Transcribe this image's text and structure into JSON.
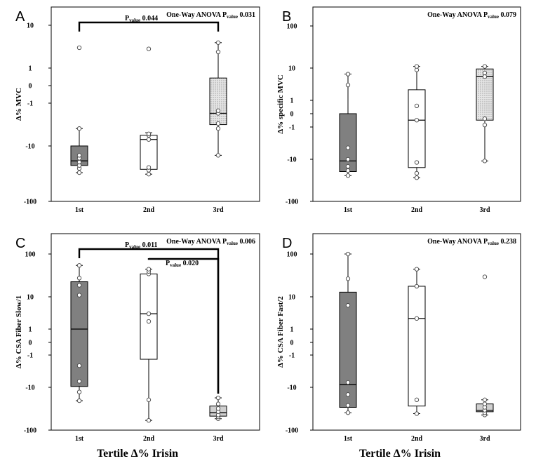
{
  "figure": {
    "xlabel": "Tertile Δ% Irisin",
    "colors": {
      "dark": "#808080",
      "light": "#ffffff",
      "pattern": "#d6d6d6",
      "light_gray": "#d0d0d0"
    }
  },
  "chart_data": [
    {
      "type": "boxplot",
      "panel": "A",
      "ylabel": "Δ% MVC",
      "categories": [
        "1st",
        "2nd",
        "3rd"
      ],
      "yscale": "symlog",
      "ylim": [
        -100,
        10
      ],
      "yticks": [
        -100,
        -10,
        -1,
        0,
        1,
        10
      ],
      "ytick_labels": [
        "-100",
        "-10",
        "-1",
        "0",
        "1",
        "10"
      ],
      "boxes": [
        {
          "category": "1st",
          "fill": "dark",
          "whisker_low": -31,
          "q1": -23,
          "median": -19,
          "q3": -10,
          "whisker_high": -4.5,
          "points": [
            -31,
            -26,
            -23,
            -20,
            -17,
            -15,
            -4.5,
            3.5
          ]
        },
        {
          "category": "2nd",
          "fill": "light",
          "whisker_low": -33,
          "q1": -27,
          "median": -7.5,
          "q3": -6.2,
          "whisker_high": -5.5,
          "points": [
            -33,
            -28,
            -25,
            -7.5,
            -6.2,
            -5.8,
            3.3
          ]
        },
        {
          "category": "3rd",
          "fill": "pattern",
          "whisker_low": -15,
          "q1": -3.7,
          "median": -2.0,
          "q3": 0.35,
          "whisker_high": 4.5,
          "points": [
            -15,
            -4.5,
            -3.5,
            -2.0,
            -1.7,
            2.8,
            4.5
          ]
        }
      ],
      "annotation": {
        "one_way_text": "One-Way ANOVA P",
        "one_way_sub": "value",
        "one_way_val": "0.031",
        "pairs": [
          {
            "from": "1st",
            "to": "3rd",
            "label": "P",
            "sub": "value",
            "val": "0.044"
          }
        ]
      }
    },
    {
      "type": "boxplot",
      "panel": "B",
      "ylabel": "Δ% specific MVC",
      "categories": [
        "1st",
        "2nd",
        "3rd"
      ],
      "yscale": "symlog",
      "ylim": [
        -100,
        100
      ],
      "yticks": [
        -100,
        -10,
        -1,
        0,
        1,
        10,
        100
      ],
      "ytick_labels": [
        "-100",
        "-10",
        "-1",
        "0",
        "1",
        "10",
        "100"
      ],
      "boxes": [
        {
          "category": "1st",
          "fill": "dark",
          "whisker_low": -25,
          "q1": -20,
          "median": -11,
          "q3": 0,
          "whisker_high": 7,
          "points": [
            -25,
            -19,
            -15,
            -10,
            -5,
            3.5,
            7
          ]
        },
        {
          "category": "2nd",
          "fill": "light",
          "whisker_low": -28,
          "q1": -16,
          "median": -0.4,
          "q3": 2.5,
          "whisker_high": 11,
          "points": [
            -28,
            -22,
            -12,
            -0.4,
            0.5,
            9,
            11
          ]
        },
        {
          "category": "3rd",
          "fill": "pattern",
          "whisker_low": -11,
          "q1": -0.4,
          "median": 6,
          "q3": 9.5,
          "whisker_high": 11,
          "points": [
            -11,
            -0.8,
            -0.3,
            6,
            7.5,
            11
          ]
        }
      ],
      "annotation": {
        "one_way_text": "One-Way ANOVA P",
        "one_way_sub": "value",
        "one_way_val": "0.079",
        "pairs": []
      }
    },
    {
      "type": "boxplot",
      "panel": "C",
      "ylabel": "Δ% CSA Fiber Slow/1",
      "categories": [
        "1st",
        "2nd",
        "3rd"
      ],
      "yscale": "symlog",
      "ylim": [
        -100,
        100
      ],
      "yticks": [
        -100,
        -10,
        -1,
        0,
        1,
        10,
        100
      ],
      "ytick_labels": [
        "-100",
        "-10",
        "-1",
        "0",
        "1",
        "10",
        "100"
      ],
      "boxes": [
        {
          "category": "1st",
          "fill": "dark",
          "whisker_low": -21,
          "q1": -9.5,
          "median": 1,
          "q3": 23,
          "whisker_high": 55,
          "points": [
            -21,
            -13,
            -7,
            -2.5,
            11,
            19,
            28,
            55
          ]
        },
        {
          "category": "2nd",
          "fill": "light",
          "whisker_low": -60,
          "q1": -1.5,
          "median": 3.5,
          "q3": 35,
          "whisker_high": 45,
          "points": [
            -60,
            -20,
            2,
            3.5,
            35,
            40,
            45
          ]
        },
        {
          "category": "3rd",
          "fill": "light_gray",
          "whisker_low": -55,
          "q1": -48,
          "median": -40,
          "q3": -28,
          "whisker_high": -18,
          "points": [
            -55,
            -50,
            -45,
            -38,
            -32,
            -25,
            -18
          ]
        }
      ],
      "annotation": {
        "one_way_text": "One-Way ANOVA P",
        "one_way_sub": "value",
        "one_way_val": "0.006",
        "pairs": [
          {
            "from": "1st",
            "to": "3rd",
            "label": "P",
            "sub": "value",
            "val": "0.011"
          },
          {
            "from": "2nd",
            "to": "3rd",
            "label": "P",
            "sub": "value",
            "val": "0.020"
          }
        ]
      }
    },
    {
      "type": "boxplot",
      "panel": "D",
      "ylabel": "Δ% CSA Fiber Fast/2",
      "categories": [
        "1st",
        "2nd",
        "3rd"
      ],
      "yscale": "symlog",
      "ylim": [
        -100,
        100
      ],
      "yticks": [
        -100,
        -10,
        -1,
        0,
        1,
        10,
        100
      ],
      "ytick_labels": [
        "-100",
        "-10",
        "-1",
        "0",
        "1",
        "10",
        "100"
      ],
      "boxes": [
        {
          "category": "1st",
          "fill": "dark",
          "whisker_low": -40,
          "q1": -30,
          "median": -8.5,
          "q3": 13,
          "whisker_high": 100,
          "points": [
            -40,
            -27,
            -15,
            -7.5,
            6,
            27,
            100
          ]
        },
        {
          "category": "2nd",
          "fill": "light",
          "whisker_low": -42,
          "q1": -28,
          "median": 2.5,
          "q3": 18,
          "whisker_high": 45,
          "points": [
            -42,
            -20,
            2.5,
            18,
            45
          ]
        },
        {
          "category": "3rd",
          "fill": "light_gray",
          "whisker_low": -45,
          "q1": -38,
          "median": -35,
          "q3": -25,
          "whisker_high": -20,
          "points": [
            -45,
            -40,
            -35,
            -30,
            -25,
            -20,
            30
          ]
        }
      ],
      "annotation": {
        "one_way_text": "One-Way ANOVA P",
        "one_way_sub": "value",
        "one_way_val": "0.238",
        "pairs": []
      }
    }
  ]
}
